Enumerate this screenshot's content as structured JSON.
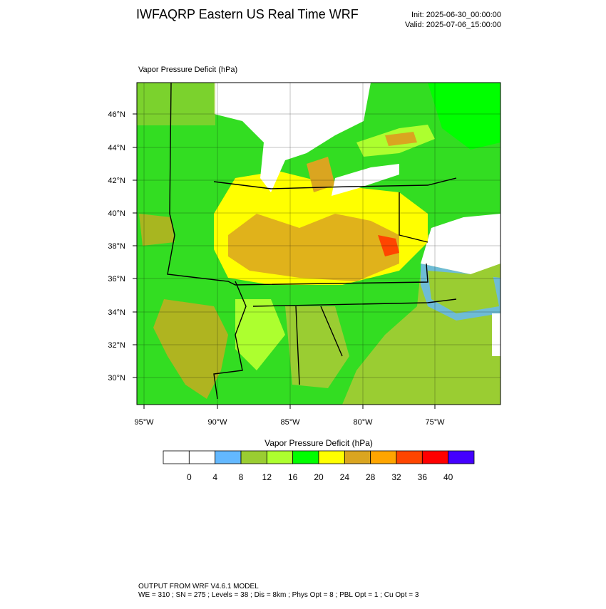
{
  "header": {
    "title": "IWFAQRP Eastern US Real Time WRF",
    "init": "Init: 2025-06-30_00:00:00",
    "valid": "Valid: 2025-07-06_15:00:00"
  },
  "map": {
    "label": "Vapor Pressure Deficit   (hPa)",
    "lat_labels": [
      "46°N",
      "44°N",
      "42°N",
      "40°N",
      "38°N",
      "36°N",
      "34°N",
      "32°N",
      "30°N"
    ],
    "lon_labels": [
      "95°W",
      "90°W",
      "85°W",
      "80°W",
      "75°W"
    ]
  },
  "colorbar": {
    "title": "Vapor Pressure Deficit  (hPa)",
    "levels": [
      0,
      4,
      8,
      12,
      16,
      20,
      24,
      28,
      32,
      36,
      40
    ],
    "colors": [
      "#ffffff",
      "#ffffff",
      "#63b8ff",
      "#9acd32",
      "#adff2f",
      "#00ff00",
      "#ffff00",
      "#daa520",
      "#ffa500",
      "#ff4500",
      "#ff0000",
      "#4400ff"
    ]
  },
  "footer": {
    "line1": "OUTPUT FROM WRF V4.6.1 MODEL",
    "line2": "WE = 310 ; SN = 275 ; Levels = 38 ; Dis = 8km ; Phys Opt = 8 ; PBL Opt = 1 ; Cu Opt = 3"
  }
}
